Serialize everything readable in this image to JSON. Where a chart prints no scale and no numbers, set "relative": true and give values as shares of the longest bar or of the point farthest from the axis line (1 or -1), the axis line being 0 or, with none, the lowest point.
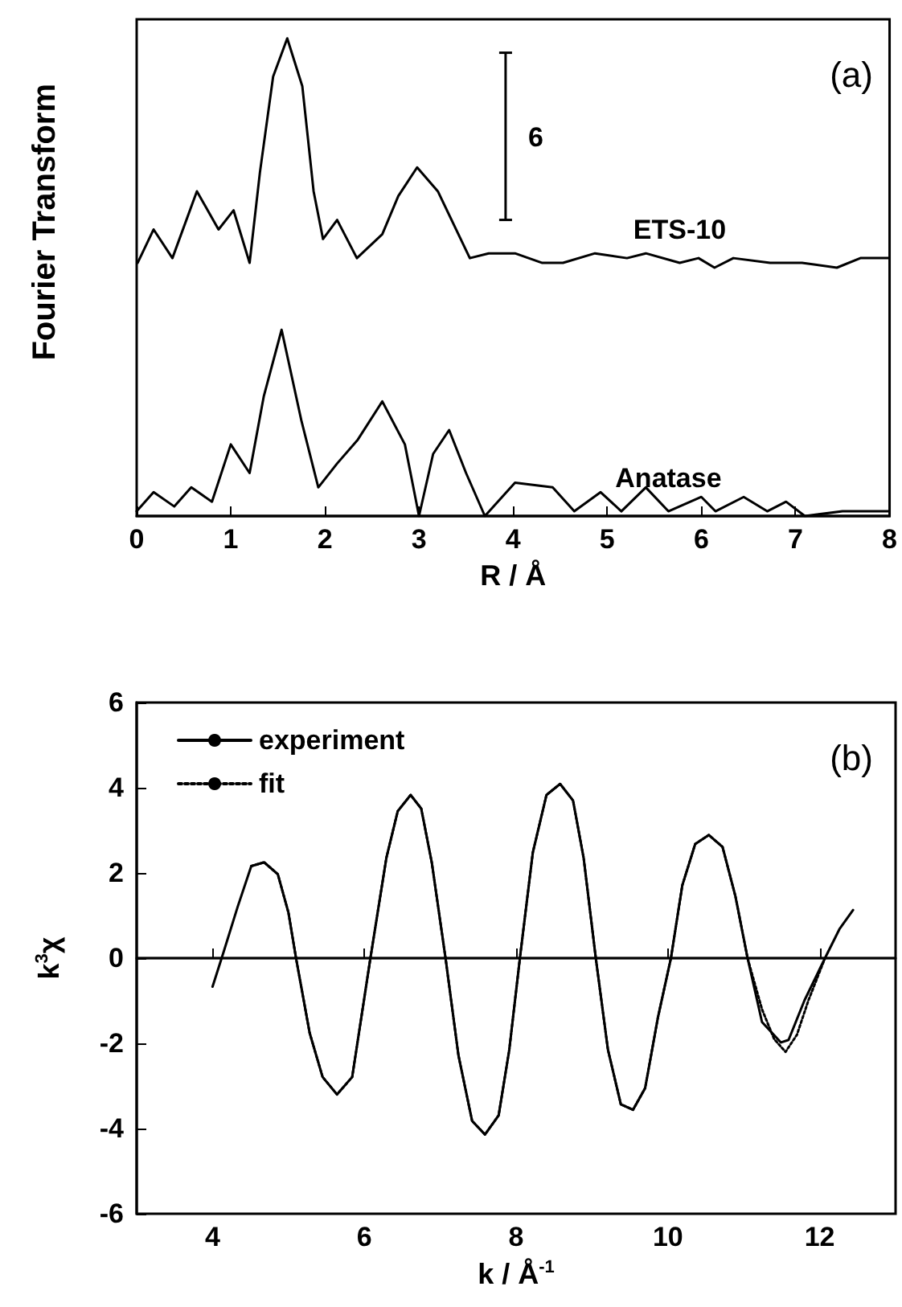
{
  "chart_data": [
    {
      "type": "line",
      "relative": true,
      "xlabel": "R / Å",
      "ylabel": "Fourier Transform",
      "xlim": [
        0,
        8
      ],
      "xticks": [
        0,
        1,
        2,
        3,
        4,
        5,
        6,
        7,
        8
      ],
      "tick_labels": "x",
      "legend": false,
      "marker": "none",
      "annotations": [
        "(a)",
        "6"
      ],
      "series": [
        {
          "name": "ETS-10",
          "color": "#000000",
          "line_style": "solid",
          "x": [
            0.01,
            0.18,
            0.38,
            0.64,
            0.87,
            1.03,
            1.2,
            1.31,
            1.45,
            1.6,
            1.76,
            1.88,
            1.98,
            2.13,
            2.34,
            2.61,
            2.78,
            2.98,
            3.2,
            3.54,
            3.74,
            4.02,
            4.31,
            4.53,
            4.87,
            5.21,
            5.41,
            5.77,
            5.97,
            6.14,
            6.34,
            6.73,
            7.07,
            7.44,
            7.69,
            8.0
          ],
          "values": [
            0.53,
            0.6,
            0.54,
            0.68,
            0.6,
            0.64,
            0.53,
            0.72,
            0.92,
            1.0,
            0.9,
            0.68,
            0.58,
            0.62,
            0.54,
            0.59,
            0.67,
            0.73,
            0.68,
            0.54,
            0.55,
            0.55,
            0.53,
            0.53,
            0.55,
            0.54,
            0.55,
            0.53,
            0.54,
            0.52,
            0.54,
            0.53,
            0.53,
            0.52,
            0.54,
            0.54
          ]
        },
        {
          "name": "Anatase",
          "color": "#000000",
          "line_style": "solid",
          "x": [
            0.0,
            0.18,
            0.4,
            0.58,
            0.8,
            1.0,
            1.2,
            1.35,
            1.54,
            1.75,
            1.93,
            2.13,
            2.35,
            2.61,
            2.85,
            3.0,
            3.15,
            3.32,
            3.5,
            3.7,
            4.02,
            4.42,
            4.65,
            4.93,
            5.15,
            5.41,
            5.65,
            6.0,
            6.15,
            6.45,
            6.7,
            6.9,
            7.1,
            7.5,
            7.7,
            8.0
          ],
          "values": [
            0.01,
            0.05,
            0.02,
            0.06,
            0.03,
            0.15,
            0.09,
            0.25,
            0.39,
            0.2,
            0.06,
            0.11,
            0.16,
            0.24,
            0.15,
            0.0,
            0.13,
            0.18,
            0.09,
            0.0,
            0.07,
            0.06,
            0.01,
            0.05,
            0.01,
            0.06,
            0.01,
            0.04,
            0.01,
            0.04,
            0.01,
            0.03,
            0.0,
            0.01,
            0.01,
            0.01
          ]
        }
      ]
    },
    {
      "type": "line",
      "xlabel": "k / Å$^{-1}$",
      "ylabel": "k$^{3}$χ",
      "xlim": [
        3,
        13
      ],
      "xticks": [
        4,
        6,
        8,
        10,
        12
      ],
      "ylim": [
        -6,
        6
      ],
      "yticks": [
        -6,
        -4,
        -2,
        0,
        2,
        4,
        6
      ],
      "legend": "top left",
      "marker": "none",
      "annotations": [
        "(b)"
      ],
      "ref_lines": [
        {
          "axis": "y",
          "value": 0,
          "color": "#000000",
          "line_style": "solid"
        }
      ],
      "series": [
        {
          "name": "experiment",
          "color": "#000000",
          "line_style": "solid",
          "x": [
            4.0,
            4.15,
            4.33,
            4.51,
            4.68,
            4.86,
            5.0,
            5.1,
            5.28,
            5.45,
            5.64,
            5.84,
            6.08,
            6.29,
            6.44,
            6.61,
            6.75,
            6.89,
            7.07,
            7.24,
            7.42,
            7.59,
            7.77,
            7.91,
            8.05,
            8.22,
            8.4,
            8.58,
            8.75,
            8.89,
            9.05,
            9.21,
            9.38,
            9.54,
            9.7,
            9.87,
            10.04,
            10.19,
            10.36,
            10.54,
            10.72,
            10.89,
            11.05,
            11.24,
            11.49,
            11.59,
            11.8,
            12.07,
            12.26,
            12.44
          ],
          "values": [
            -0.67,
            0.17,
            1.2,
            2.16,
            2.25,
            1.97,
            1.07,
            0,
            -1.76,
            -2.79,
            -3.2,
            -2.79,
            0,
            2.35,
            3.45,
            3.83,
            3.51,
            2.23,
            0,
            -2.28,
            -3.82,
            -4.14,
            -3.69,
            -2.15,
            0,
            2.48,
            3.83,
            4.09,
            3.7,
            2.35,
            0,
            -2.15,
            -3.43,
            -3.56,
            -3.05,
            -1.38,
            0,
            1.71,
            2.68,
            2.89,
            2.61,
            1.45,
            0,
            -1.5,
            -1.98,
            -1.92,
            -0.99,
            0,
            0.68,
            1.13
          ]
        },
        {
          "name": "fit",
          "color": "#000000",
          "line_style": "dotted",
          "x": [
            4.51,
            4.68,
            4.86,
            5.0,
            5.1,
            5.28,
            5.45,
            5.64,
            5.84,
            6.08,
            6.29,
            6.44,
            6.61,
            6.75,
            6.89,
            7.07,
            7.24,
            7.42,
            7.59,
            7.77,
            7.91,
            8.05,
            8.22,
            8.4,
            8.58,
            8.75,
            8.89,
            9.05,
            9.21,
            9.38,
            9.54,
            9.7,
            9.87,
            10.04,
            10.19,
            10.36,
            10.54,
            10.72,
            10.89,
            11.05,
            11.24,
            11.4,
            11.55,
            11.7,
            11.85,
            12.07
          ],
          "values": [
            2.16,
            2.25,
            1.97,
            1.07,
            0,
            -1.76,
            -2.79,
            -3.2,
            -2.79,
            0,
            2.35,
            3.45,
            3.83,
            3.51,
            2.23,
            0,
            -2.28,
            -3.82,
            -4.14,
            -3.69,
            -2.15,
            0,
            2.48,
            3.83,
            4.09,
            3.7,
            2.35,
            0,
            -2.15,
            -3.43,
            -3.56,
            -3.05,
            -1.38,
            0,
            1.71,
            2.68,
            2.89,
            2.61,
            1.45,
            0,
            -1.2,
            -1.9,
            -2.2,
            -1.8,
            -1.0,
            0
          ]
        }
      ]
    }
  ]
}
